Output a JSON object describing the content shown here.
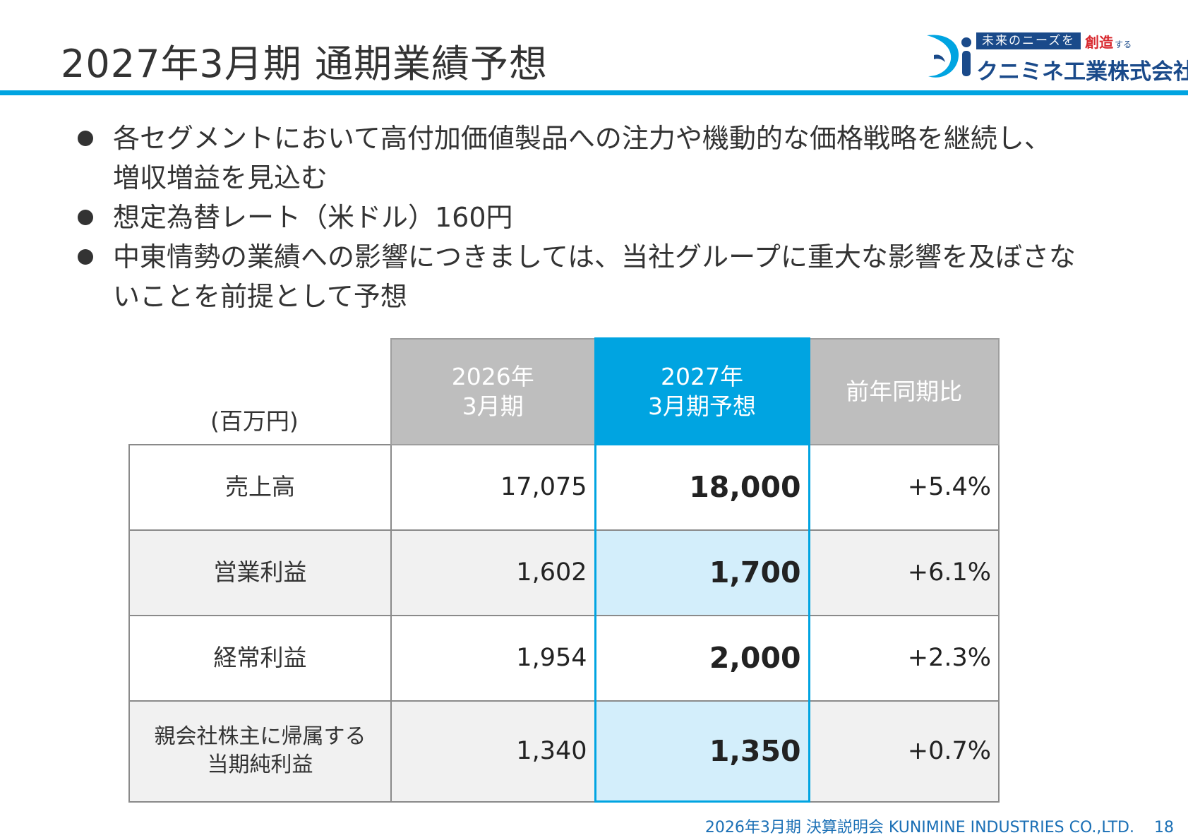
{
  "header": {
    "title": "2027年3月期 通期業績予想"
  },
  "logo": {
    "tagline": "未来のニーズを",
    "tagline_red": "創造",
    "tagline_small": "する",
    "company_name": "クニミネ工業株式会社",
    "brand_color": "#1a4a8a",
    "accent_color": "#00a4e1"
  },
  "bullets": [
    {
      "line1": "各セグメントにおいて高付加価値製品への注力や機動的な価格戦略を継続し、",
      "line2": "増収増益を見込む"
    },
    {
      "line1": "想定為替レート（米ドル）160円",
      "line2": ""
    },
    {
      "line1": "中東情勢の業績への影響につきましては、当社グループに重大な影響を及ぼさな",
      "line2": "いことを前提として予想"
    }
  ],
  "table": {
    "unit": "(百万円)",
    "headers": {
      "prev_line1": "2026年",
      "prev_line2": "3月期",
      "fore_line1": "2027年",
      "fore_line2": "3月期予想",
      "yoy": "前年同期比"
    },
    "rows": [
      {
        "label_line1": "売上高",
        "label_line2": "",
        "prev": "17,075",
        "forecast": "18,000",
        "yoy": "+5.4%"
      },
      {
        "label_line1": "営業利益",
        "label_line2": "",
        "prev": "1,602",
        "forecast": "1,700",
        "yoy": "+6.1%"
      },
      {
        "label_line1": "経常利益",
        "label_line2": "",
        "prev": "1,954",
        "forecast": "2,000",
        "yoy": "+2.3%"
      },
      {
        "label_line1": "親会社株主に帰属する",
        "label_line2": "当期純利益",
        "prev": "1,340",
        "forecast": "1,350",
        "yoy": "+0.7%"
      }
    ]
  },
  "footer": {
    "text": "2026年3月期 決算説明会 KUNIMINE INDUSTRIES CO.,LTD.",
    "page": "18"
  }
}
